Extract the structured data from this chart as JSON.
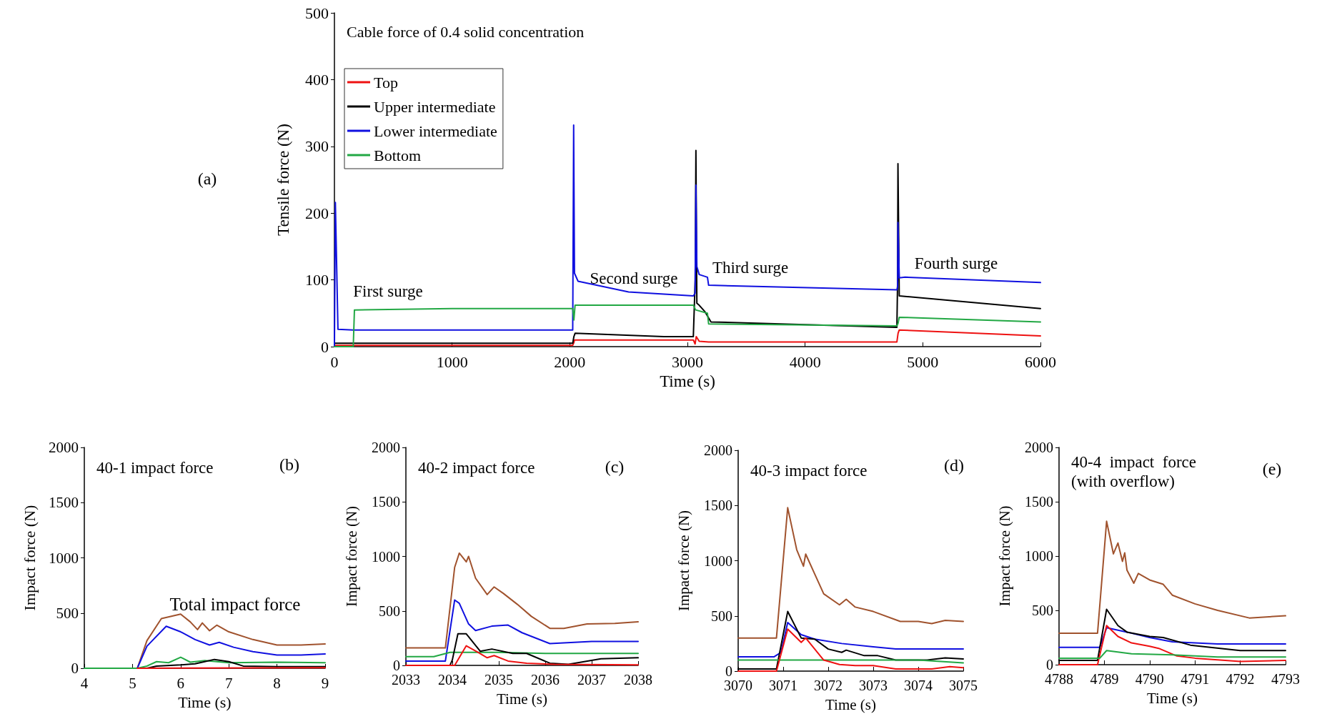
{
  "chart_data": [
    {
      "type": "line",
      "title": "Cable force of 0.4 solid concentration",
      "xlabel": "Time (s)",
      "ylabel": "Tensile force (N)",
      "xlim": [
        0,
        6000
      ],
      "xticks": [
        0,
        1000,
        2000,
        3000,
        4000,
        5000,
        6000
      ],
      "ylim": [
        0,
        500
      ],
      "yticks": [
        0,
        100,
        200,
        300,
        400,
        500
      ],
      "grid": false,
      "legend": "top left",
      "marker": "none",
      "line_style": "solid",
      "annotations": [
        "(a)",
        "First surge",
        "Second surge",
        "Third surge",
        "Fourth surge"
      ],
      "series": [
        {
          "name": "Top",
          "color": "#ee1111",
          "x": [
            0,
            2025,
            2035,
            2040,
            3050,
            3065,
            3075,
            3100,
            3180,
            4780,
            4790,
            4800,
            6000
          ],
          "values": [
            2,
            2,
            6,
            10,
            10,
            4,
            15,
            8,
            7,
            7,
            20,
            25,
            16
          ]
        },
        {
          "name": "Upper intermediate",
          "color": "#000000",
          "x": [
            0,
            2025,
            2035,
            2045,
            2800,
            3050,
            3066,
            3072,
            3080,
            3100,
            3150,
            3200,
            4780,
            4786,
            4789,
            4800,
            6000
          ],
          "values": [
            5,
            5,
            15,
            20,
            15,
            15,
            100,
            294,
            65,
            62,
            52,
            37,
            29,
            100,
            274,
            76,
            57
          ]
        },
        {
          "name": "Lower intermediate",
          "color": "#1010e0",
          "x": [
            0,
            8,
            30,
            160,
            2025,
            2033,
            2040,
            2070,
            2500,
            3050,
            3065,
            3072,
            3080,
            3100,
            3170,
            3180,
            4780,
            4786,
            4789,
            4800,
            4850,
            6000
          ],
          "values": [
            0,
            216,
            26,
            25,
            25,
            332,
            110,
            98,
            82,
            76,
            80,
            242,
            120,
            108,
            104,
            92,
            85,
            90,
            186,
            103,
            104,
            96
          ]
        },
        {
          "name": "Bottom",
          "color": "#22a844",
          "x": [
            0,
            160,
            170,
            1000,
            2025,
            2035,
            2045,
            3050,
            3070,
            3170,
            3180,
            4780,
            4790,
            4800,
            6000
          ],
          "values": [
            0,
            0,
            55,
            57,
            57,
            40,
            62,
            62,
            55,
            50,
            34,
            31,
            35,
            44,
            37
          ]
        }
      ]
    },
    {
      "type": "line",
      "title": "40-1 impact force",
      "xlabel": "Time (s)",
      "ylabel": "Impact force (N)",
      "xlim": [
        4,
        9
      ],
      "xticks": [
        4,
        5,
        6,
        7,
        8,
        9
      ],
      "ylim": [
        0,
        2000
      ],
      "yticks": [
        0,
        500,
        1000,
        1500,
        2000
      ],
      "grid": false,
      "legend": false,
      "marker": "none",
      "line_style": "solid",
      "annotations": [
        "(b)",
        "Total impact force"
      ],
      "series": [
        {
          "color": "#a0522d",
          "x": [
            4,
            5.1,
            5.3,
            5.6,
            6.0,
            6.2,
            6.35,
            6.45,
            6.6,
            6.75,
            7.0,
            7.5,
            8.0,
            8.5,
            9.0
          ],
          "values": [
            0,
            0,
            250,
            450,
            490,
            420,
            350,
            410,
            340,
            390,
            330,
            260,
            210,
            210,
            220
          ]
        },
        {
          "color": "#1010e0",
          "x": [
            4,
            5.1,
            5.3,
            5.7,
            6.0,
            6.3,
            6.6,
            6.8,
            7.1,
            7.5,
            8.0,
            8.5,
            9.0
          ],
          "values": [
            0,
            0,
            200,
            380,
            330,
            260,
            210,
            235,
            190,
            150,
            120,
            120,
            130
          ]
        },
        {
          "color": "#22a844",
          "x": [
            4,
            5.1,
            5.3,
            5.5,
            5.75,
            6.0,
            6.2,
            6.5,
            7.0,
            8.0,
            9.0
          ],
          "values": [
            0,
            0,
            20,
            60,
            50,
            100,
            55,
            70,
            50,
            55,
            50
          ]
        },
        {
          "color": "#000000",
          "x": [
            5.3,
            5.5,
            6.0,
            6.3,
            6.5,
            6.7,
            7.0,
            7.3,
            8.0,
            9.0
          ],
          "values": [
            0,
            20,
            30,
            40,
            60,
            80,
            60,
            20,
            15,
            15
          ]
        },
        {
          "color": "#ee1111",
          "x": [
            5.1,
            9.0
          ],
          "values": [
            0,
            5
          ]
        }
      ]
    },
    {
      "type": "line",
      "title": "40-2 impact force",
      "xlabel": "Time (s)",
      "ylabel": "Impact force (N)",
      "xlim": [
        2033,
        2038
      ],
      "xticks": [
        2033,
        2034,
        2035,
        2036,
        2037,
        2038
      ],
      "ylim": [
        0,
        2000
      ],
      "yticks": [
        0,
        500,
        1000,
        1500,
        2000
      ],
      "grid": false,
      "legend": false,
      "marker": "none",
      "line_style": "solid",
      "annotations": [
        "(c)"
      ],
      "series": [
        {
          "color": "#a0522d",
          "x": [
            2033,
            2033.85,
            2034.05,
            2034.15,
            2034.3,
            2034.35,
            2034.5,
            2034.75,
            2034.9,
            2035.1,
            2035.4,
            2035.7,
            2036.1,
            2036.4,
            2036.9,
            2037.5,
            2038
          ],
          "values": [
            160,
            160,
            900,
            1030,
            950,
            1000,
            800,
            650,
            720,
            660,
            560,
            450,
            340,
            340,
            380,
            385,
            400
          ]
        },
        {
          "color": "#1010e0",
          "x": [
            2033,
            2033.85,
            2034.05,
            2034.15,
            2034.35,
            2034.5,
            2034.85,
            2035.2,
            2035.5,
            2036.1,
            2037,
            2038
          ],
          "values": [
            40,
            40,
            600,
            570,
            380,
            320,
            360,
            370,
            300,
            200,
            220,
            220
          ]
        },
        {
          "color": "#22a844",
          "x": [
            2033,
            2033.6,
            2033.95,
            2035,
            2036,
            2038
          ],
          "values": [
            80,
            80,
            120,
            120,
            110,
            110
          ]
        },
        {
          "color": "#000000",
          "x": [
            2033,
            2033.95,
            2034.0,
            2034.12,
            2034.3,
            2034.6,
            2034.85,
            2035.3,
            2035.6,
            2036.1,
            2036.5,
            2037.2,
            2038
          ],
          "values": [
            0,
            0,
            50,
            290,
            290,
            130,
            150,
            110,
            110,
            20,
            10,
            60,
            70
          ]
        },
        {
          "color": "#ee1111",
          "x": [
            2033,
            2034.05,
            2034.3,
            2034.55,
            2034.75,
            2034.9,
            2035.2,
            2035.6,
            2036.2,
            2038
          ],
          "values": [
            0,
            0,
            180,
            120,
            70,
            90,
            40,
            20,
            10,
            5
          ]
        }
      ]
    },
    {
      "type": "line",
      "title": "40-3 impact force",
      "xlabel": "Time (s)",
      "ylabel": "Impact force (N)",
      "xlim": [
        3070,
        3075
      ],
      "xticks": [
        3070,
        3071,
        3072,
        3073,
        3074,
        3075
      ],
      "ylim": [
        0,
        2000
      ],
      "yticks": [
        0,
        500,
        1000,
        1500,
        2000
      ],
      "grid": false,
      "legend": false,
      "marker": "none",
      "line_style": "solid",
      "annotations": [
        "(d)"
      ],
      "series": [
        {
          "color": "#a0522d",
          "x": [
            3070,
            3070.85,
            3071.1,
            3071.3,
            3071.45,
            3071.5,
            3071.7,
            3071.9,
            3072.25,
            3072.4,
            3072.6,
            3073,
            3073.6,
            3074,
            3074.3,
            3074.6,
            3075
          ],
          "values": [
            300,
            300,
            1480,
            1100,
            950,
            1060,
            880,
            700,
            600,
            650,
            580,
            540,
            450,
            450,
            430,
            460,
            450
          ]
        },
        {
          "color": "#1010e0",
          "x": [
            3070,
            3070.8,
            3070.95,
            3071.1,
            3071.4,
            3071.7,
            3072.3,
            3073,
            3073.5,
            3075
          ],
          "values": [
            130,
            130,
            170,
            440,
            330,
            290,
            250,
            220,
            200,
            200
          ]
        },
        {
          "color": "#000000",
          "x": [
            3070,
            3070.85,
            3071.1,
            3071.4,
            3071.7,
            3072,
            3072.3,
            3072.4,
            3072.8,
            3073.1,
            3073.5,
            3074.2,
            3074.6,
            3075
          ],
          "values": [
            20,
            20,
            540,
            300,
            290,
            200,
            170,
            190,
            140,
            140,
            100,
            100,
            120,
            110
          ]
        },
        {
          "color": "#22a844",
          "x": [
            3070,
            3074,
            3075
          ],
          "values": [
            100,
            100,
            75
          ]
        },
        {
          "color": "#ee1111",
          "x": [
            3070,
            3070.85,
            3071.1,
            3071.4,
            3071.5,
            3071.7,
            3071.9,
            3072.25,
            3072.6,
            3073,
            3073.5,
            3074.3,
            3074.7,
            3075
          ],
          "values": [
            0,
            0,
            380,
            260,
            300,
            200,
            100,
            60,
            50,
            50,
            20,
            20,
            40,
            30
          ]
        }
      ]
    },
    {
      "type": "line",
      "title": "40-4  impact  force\n(with overflow)",
      "xlabel": "Time (s)",
      "ylabel": "Impact force (N)",
      "xlim": [
        4788,
        4793
      ],
      "xticks": [
        4788,
        4789,
        4790,
        4791,
        4792,
        4793
      ],
      "ylim": [
        0,
        2000
      ],
      "yticks": [
        0,
        500,
        1000,
        1500,
        2000
      ],
      "grid": false,
      "legend": false,
      "marker": "none",
      "line_style": "solid",
      "annotations": [
        "(e)"
      ],
      "series": [
        {
          "color": "#a0522d",
          "x": [
            4788,
            4788.85,
            4789.05,
            4789.2,
            4789.3,
            4789.4,
            4789.45,
            4789.5,
            4789.65,
            4789.75,
            4790,
            4790.3,
            4790.5,
            4791,
            4791.5,
            4792.2,
            4793
          ],
          "values": [
            290,
            290,
            1320,
            1020,
            1120,
            950,
            1030,
            870,
            750,
            840,
            780,
            740,
            640,
            560,
            500,
            430,
            450
          ]
        },
        {
          "color": "#1010e0",
          "x": [
            4788,
            4788.9,
            4789.05,
            4789.5,
            4790,
            4790.5,
            4791.5,
            4793
          ],
          "values": [
            160,
            160,
            340,
            300,
            250,
            210,
            190,
            190
          ]
        },
        {
          "color": "#000000",
          "x": [
            4788,
            4788.85,
            4789.05,
            4789.3,
            4789.5,
            4790,
            4790.3,
            4790.9,
            4792,
            4793
          ],
          "values": [
            40,
            40,
            510,
            360,
            300,
            260,
            250,
            180,
            130,
            130
          ]
        },
        {
          "color": "#ee1111",
          "x": [
            4788,
            4788.85,
            4789.05,
            4789.3,
            4789.6,
            4790,
            4790.2,
            4790.6,
            4791,
            4792,
            4793
          ],
          "values": [
            0,
            0,
            360,
            260,
            200,
            170,
            150,
            80,
            60,
            30,
            40
          ]
        },
        {
          "color": "#22a844",
          "x": [
            4788,
            4788.9,
            4789.05,
            4789.6,
            4790.5,
            4791.5,
            4793
          ],
          "values": [
            60,
            60,
            130,
            100,
            90,
            70,
            70
          ]
        }
      ]
    }
  ]
}
